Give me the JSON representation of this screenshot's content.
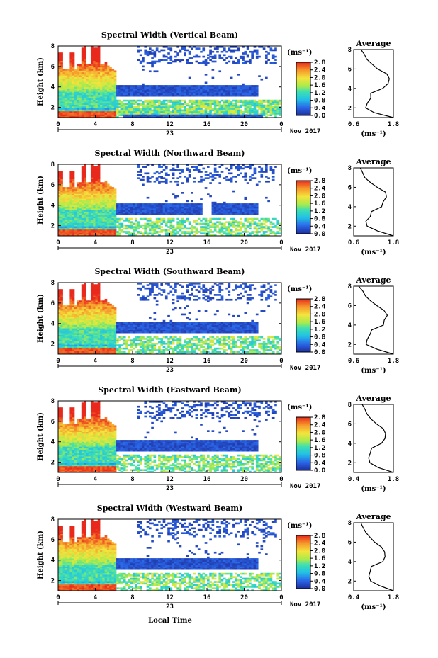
{
  "page": {
    "xlabel": "Local Time",
    "month": "Nov 2017",
    "day": "23",
    "ylabel": "Height (km)",
    "unit": "(ms⁻¹)",
    "avg_title": "Average",
    "avg_xlabel": "(ms⁻¹)"
  },
  "chart_data": [
    {
      "type": "heatmap",
      "title": "Spectral Width (Vertical Beam)",
      "xlabel": "Local Time",
      "ylabel": "Height (km)",
      "x_ticks": [
        "0",
        "4",
        "8",
        "12",
        "16",
        "20",
        "0"
      ],
      "y_ticks": [
        "2",
        "4",
        "6",
        "8"
      ],
      "xlim": [
        0,
        24
      ],
      "ylim": [
        1,
        8
      ],
      "colorbar": {
        "label": "(ms⁻¹)",
        "ticks": [
          "2.8",
          "2.4",
          "2.0",
          "1.6",
          "1.2",
          "0.8",
          "0.4",
          "0.0"
        ],
        "range": [
          0,
          2.8
        ]
      },
      "average_profile": {
        "title": "Average",
        "xlabel": "(ms⁻¹)",
        "x_ticks": [
          "0.6",
          "1.8"
        ],
        "xlim": [
          0.6,
          1.8
        ],
        "height": [
          1.0,
          1.5,
          2.0,
          2.5,
          3.0,
          3.5,
          4.0,
          4.5,
          5.0,
          5.5,
          6.0,
          6.5,
          7.0,
          7.5,
          8.0
        ],
        "width": [
          1.8,
          1.25,
          0.98,
          1.0,
          1.12,
          1.14,
          1.48,
          1.62,
          1.7,
          1.6,
          1.35,
          1.15,
          1.0,
          0.9,
          0.82
        ]
      }
    },
    {
      "type": "heatmap",
      "title": "Spectral Width (Northward Beam)",
      "xlabel": "Local Time",
      "ylabel": "Height (km)",
      "x_ticks": [
        "0",
        "4",
        "8",
        "12",
        "16",
        "20",
        "0"
      ],
      "y_ticks": [
        "2",
        "4",
        "6",
        "8"
      ],
      "xlim": [
        0,
        24
      ],
      "ylim": [
        1,
        8
      ],
      "colorbar": {
        "label": "(ms⁻¹)",
        "ticks": [
          "2.8",
          "2.4",
          "2.0",
          "1.6",
          "1.2",
          "0.8",
          "0.4",
          "0.0"
        ],
        "range": [
          0,
          2.8
        ]
      },
      "average_profile": {
        "title": "Average",
        "xlabel": "(ms⁻¹)",
        "x_ticks": [
          "0.6",
          "1.8"
        ],
        "xlim": [
          0.6,
          1.8
        ],
        "height": [
          1.0,
          1.5,
          2.0,
          2.5,
          3.0,
          3.5,
          4.0,
          4.5,
          5.0,
          5.5,
          6.0,
          6.5,
          7.0,
          7.5,
          8.0
        ],
        "width": [
          1.8,
          1.3,
          1.0,
          0.98,
          1.08,
          1.12,
          1.45,
          1.5,
          1.6,
          1.55,
          1.3,
          1.1,
          0.95,
          0.85,
          0.8
        ]
      }
    },
    {
      "type": "heatmap",
      "title": "Spectral Width (Southward Beam)",
      "xlabel": "Local Time",
      "ylabel": "Height (km)",
      "x_ticks": [
        "0",
        "4",
        "8",
        "12",
        "16",
        "20",
        "0"
      ],
      "y_ticks": [
        "2",
        "4",
        "6",
        "8"
      ],
      "xlim": [
        0,
        24
      ],
      "ylim": [
        1,
        8
      ],
      "colorbar": {
        "label": "(ms⁻¹)",
        "ticks": [
          "2.8",
          "2.4",
          "2.0",
          "1.6",
          "1.2",
          "0.8",
          "0.4",
          "0.0"
        ],
        "range": [
          0,
          2.8
        ]
      },
      "average_profile": {
        "title": "Average",
        "xlabel": "(ms⁻¹)",
        "x_ticks": [
          "0.6",
          "1.8"
        ],
        "xlim": [
          0.6,
          1.8
        ],
        "height": [
          1.0,
          1.5,
          2.0,
          2.5,
          3.0,
          3.5,
          4.0,
          4.5,
          5.0,
          5.5,
          6.0,
          6.5,
          7.0,
          7.5,
          8.0
        ],
        "width": [
          1.8,
          1.3,
          1.0,
          1.0,
          1.1,
          1.12,
          1.5,
          1.55,
          1.62,
          1.5,
          1.28,
          1.1,
          0.95,
          0.85,
          0.75
        ]
      }
    },
    {
      "type": "heatmap",
      "title": "Spectral Width (Eastward Beam)",
      "xlabel": "Local Time",
      "ylabel": "Height (km)",
      "x_ticks": [
        "0",
        "4",
        "8",
        "12",
        "16",
        "20",
        "0"
      ],
      "y_ticks": [
        "2",
        "4",
        "6",
        "8"
      ],
      "xlim": [
        0,
        24
      ],
      "ylim": [
        1,
        8
      ],
      "colorbar": {
        "label": "(ms⁻¹)",
        "ticks": [
          "2.8",
          "2.4",
          "2.0",
          "1.6",
          "1.2",
          "0.8",
          "0.4",
          "0.0"
        ],
        "range": [
          0,
          2.8
        ]
      },
      "average_profile": {
        "title": "Average",
        "xlabel": "(ms⁻¹)",
        "x_ticks": [
          "0.4",
          "1.8"
        ],
        "xlim": [
          0.4,
          1.8
        ],
        "height": [
          1.0,
          1.5,
          2.0,
          2.5,
          3.0,
          3.5,
          4.0,
          4.5,
          5.0,
          5.5,
          6.0,
          6.5,
          7.0,
          7.5,
          8.0
        ],
        "width": [
          1.8,
          1.25,
          1.0,
          0.95,
          1.0,
          1.05,
          1.4,
          1.5,
          1.55,
          1.45,
          1.2,
          1.0,
          0.88,
          0.8,
          0.7
        ]
      }
    },
    {
      "type": "heatmap",
      "title": "Spectral Width (Westward Beam)",
      "xlabel": "Local Time",
      "ylabel": "Height (km)",
      "x_ticks": [
        "0",
        "4",
        "8",
        "12",
        "16",
        "20",
        "0"
      ],
      "y_ticks": [
        "2",
        "4",
        "6",
        "8"
      ],
      "xlim": [
        0,
        24
      ],
      "ylim": [
        1,
        8
      ],
      "colorbar": {
        "label": "(ms⁻¹)",
        "ticks": [
          "2.8",
          "2.4",
          "2.0",
          "1.6",
          "1.2",
          "0.8",
          "0.4",
          "0.0"
        ],
        "range": [
          0,
          2.8
        ]
      },
      "average_profile": {
        "title": "Average",
        "xlabel": "(ms⁻¹)",
        "x_ticks": [
          "0.4",
          "1.8"
        ],
        "xlim": [
          0.4,
          1.8
        ],
        "height": [
          1.0,
          1.5,
          2.0,
          2.5,
          3.0,
          3.5,
          4.0,
          4.5,
          5.0,
          5.5,
          6.0,
          6.5,
          7.0,
          7.5,
          8.0
        ],
        "width": [
          1.8,
          1.3,
          1.0,
          0.95,
          1.0,
          1.05,
          1.45,
          1.5,
          1.5,
          1.4,
          1.15,
          0.98,
          0.85,
          0.75,
          0.65
        ]
      }
    }
  ]
}
